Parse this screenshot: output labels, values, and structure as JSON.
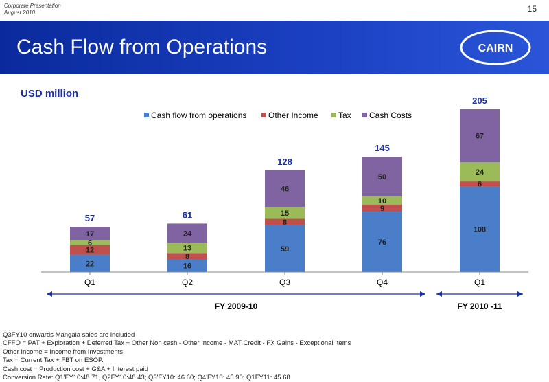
{
  "header": {
    "meta_line1": "Corporate Presentation",
    "meta_line2": "August 2010",
    "page_number": "15",
    "title": "Cash Flow from Operations",
    "logo_text": "CAIRN"
  },
  "colors": {
    "banner": "#1a3fc0",
    "cash_flow": "#4a7ec8",
    "other_income": "#c0504d",
    "tax": "#9bbb59",
    "cash_costs": "#8064a2",
    "total_label": "#1b2fa8"
  },
  "chart_data": {
    "type": "bar",
    "stacked": true,
    "unit_label": "USD million",
    "categories": [
      "Q1",
      "Q2",
      "Q3",
      "Q4",
      "Q1"
    ],
    "series": [
      {
        "name": "Cash flow from operations",
        "values": [
          22,
          16,
          59,
          76,
          108
        ]
      },
      {
        "name": "Other Income",
        "values": [
          12,
          8,
          8,
          9,
          6
        ]
      },
      {
        "name": "Tax",
        "values": [
          6,
          13,
          15,
          10,
          24
        ]
      },
      {
        "name": "Cash Costs",
        "values": [
          17,
          24,
          46,
          50,
          67
        ]
      }
    ],
    "totals": [
      57,
      61,
      128,
      145,
      205
    ],
    "legend_position": "top",
    "groups": [
      {
        "label": "FY 2009-10",
        "from": 0,
        "to": 3
      },
      {
        "label": "FY 2010 -11",
        "from": 4,
        "to": 4
      }
    ],
    "ylim": [
      0,
      210
    ],
    "grid": false
  },
  "notes": [
    "Q3FY10 onwards Mangala sales are included",
    "CFFO = PAT + Exploration + Deferred Tax + Other Non cash - Other Income - MAT Credit - FX Gains - Exceptional Items",
    "Other Income = Income from Investments",
    "Tax = Current Tax + FBT on ESOP.",
    "Cash cost = Production cost + G&A + Interest paid",
    "Conversion Rate: Q1'FY10:48.71, Q2FY10:48.43; Q3'FY10: 46.60; Q4'FY10: 45.90; Q1FY11: 45.68"
  ]
}
